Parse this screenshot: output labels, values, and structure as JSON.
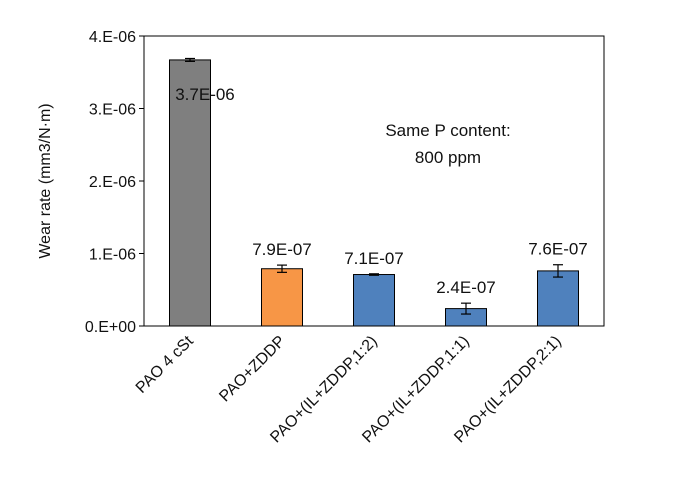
{
  "chart_data": {
    "type": "bar",
    "categories": [
      "PAO 4 cSt",
      "PAO+ZDDP",
      "PAO+(IL+ZDDP,1:2)",
      "PAO+(IL+ZDDP,1:1)",
      "PAO+(IL+ZDDP,2:1)"
    ],
    "values": [
      3.67e-06,
      7.9e-07,
      7.1e-07,
      2.4e-07,
      7.6e-07
    ],
    "errors": [
      2e-08,
      5e-08,
      1e-08,
      7.5e-08,
      8.5e-08
    ],
    "data_labels": [
      "3.7E-06",
      "7.9E-07",
      "7.1E-07",
      "2.4E-07",
      "7.6E-07"
    ],
    "colors": [
      "#7f7f7f",
      "#f79646",
      "#4f81bd",
      "#4f81bd",
      "#4f81bd"
    ],
    "ylabel": "Wear rate (mm3/N·m)",
    "xlabel": "",
    "ylim": [
      0,
      4e-06
    ],
    "yticks": [
      0,
      1e-06,
      2e-06,
      3e-06,
      4e-06
    ],
    "ytick_labels": [
      "0.E+00",
      "1.E-06",
      "2.E-06",
      "3.E-06",
      "4.E-06"
    ],
    "annotation": [
      "Same P content:",
      "800 ppm"
    ],
    "grid": false,
    "legend": "none"
  }
}
